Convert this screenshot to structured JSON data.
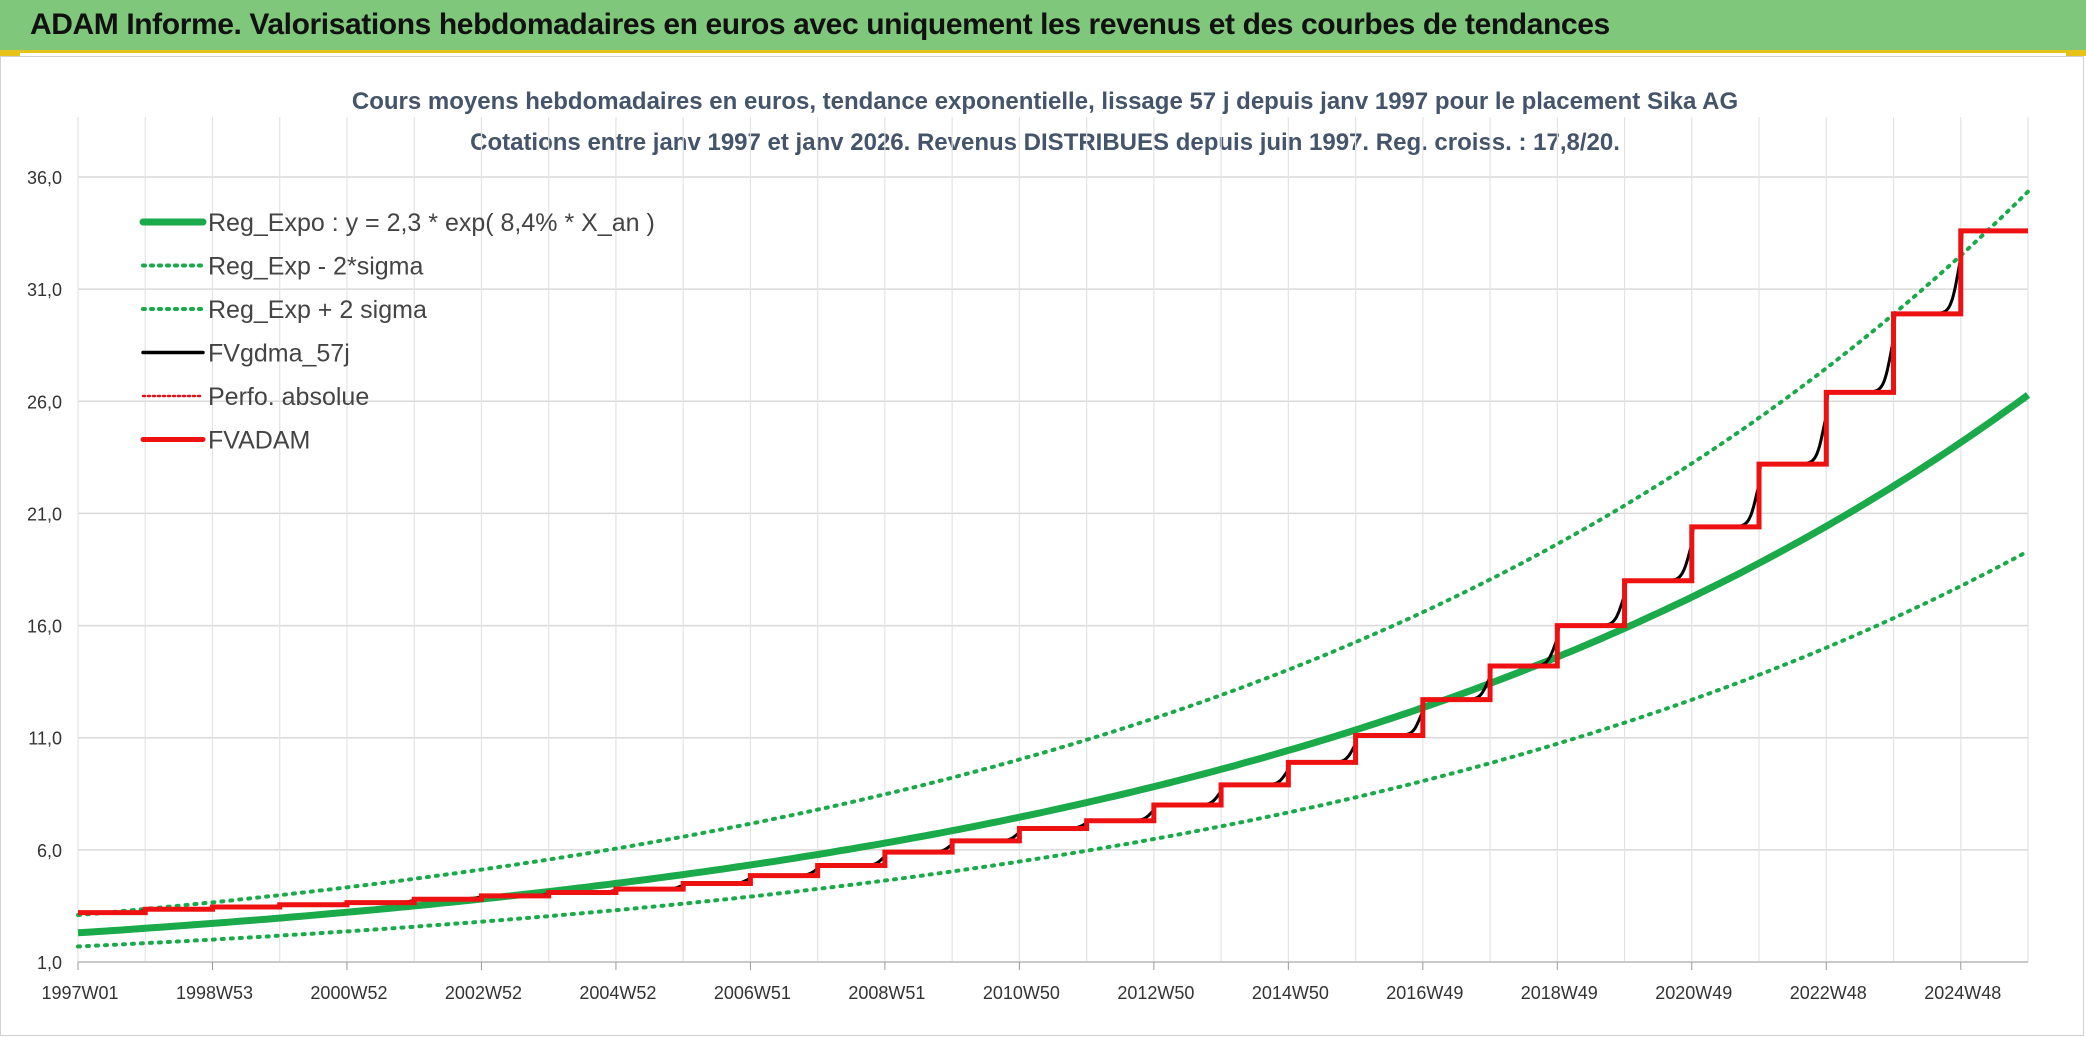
{
  "banner": {
    "title": "ADAM Informe. Valorisations hebdomadaires en euros avec uniquement les revenus et des courbes de tendances"
  },
  "chart_data": {
    "type": "line",
    "title": "Cours moyens hebdomadaires en euros, tendance exponentielle, lissage 57 j depuis janv 1997 pour le placement Sika AG",
    "subtitle": "Cotations entre janv 1997 et janv 2026. Revenus DISTRIBUES depuis juin 1997. Reg. croiss. : 17,8/20.",
    "x_start_year": 1997.0,
    "x_end_year": 2026.0,
    "x_tick_labels": [
      "1997W01",
      "1998W53",
      "2000W52",
      "2002W52",
      "2004W52",
      "2006W51",
      "2008W51",
      "2010W50",
      "2012W50",
      "2014W50",
      "2016W49",
      "2018W49",
      "2020W49",
      "2022W48",
      "2024W48"
    ],
    "y_ticks": [
      "1,0",
      "6,0",
      "11,0",
      "16,0",
      "21,0",
      "26,0",
      "31,0",
      "36,0"
    ],
    "ylim": [
      1,
      36
    ],
    "grid": true,
    "legend_position": "top-left",
    "reg_expo": {
      "a": 2.3,
      "rate": 0.084
    },
    "sigma_factors": {
      "lower": 0.735,
      "upper": 1.345
    },
    "fvadam_steps": [
      {
        "year": 1997.0,
        "value": 3.2
      },
      {
        "year": 1998.0,
        "value": 3.35
      },
      {
        "year": 1999.0,
        "value": 3.45
      },
      {
        "year": 2000.0,
        "value": 3.55
      },
      {
        "year": 2001.0,
        "value": 3.65
      },
      {
        "year": 2002.0,
        "value": 3.8
      },
      {
        "year": 2003.0,
        "value": 3.95
      },
      {
        "year": 2004.0,
        "value": 4.1
      },
      {
        "year": 2005.0,
        "value": 4.25
      },
      {
        "year": 2006.0,
        "value": 4.5
      },
      {
        "year": 2007.0,
        "value": 4.85
      },
      {
        "year": 2008.0,
        "value": 5.3
      },
      {
        "year": 2009.0,
        "value": 5.9
      },
      {
        "year": 2010.0,
        "value": 6.4
      },
      {
        "year": 2011.0,
        "value": 6.95
      },
      {
        "year": 2012.0,
        "value": 7.3
      },
      {
        "year": 2013.0,
        "value": 8.0
      },
      {
        "year": 2014.0,
        "value": 8.9
      },
      {
        "year": 2015.0,
        "value": 9.9
      },
      {
        "year": 2016.0,
        "value": 11.1
      },
      {
        "year": 2017.0,
        "value": 12.7
      },
      {
        "year": 2018.0,
        "value": 14.2
      },
      {
        "year": 2019.0,
        "value": 16.0
      },
      {
        "year": 2020.0,
        "value": 18.0
      },
      {
        "year": 2021.0,
        "value": 20.4
      },
      {
        "year": 2022.0,
        "value": 23.2
      },
      {
        "year": 2023.0,
        "value": 26.4
      },
      {
        "year": 2024.0,
        "value": 29.9
      },
      {
        "year": 2025.0,
        "value": 33.6
      }
    ],
    "series": [
      {
        "name": "Reg_Expo : y = 2,3 * exp( 8,4% *  X_an )",
        "color": "#1aaa4a",
        "style": "solid-thick"
      },
      {
        "name": "Reg_Exp - 2*sigma",
        "color": "#1aaa4a",
        "style": "dotted"
      },
      {
        "name": "Reg_Exp + 2 sigma",
        "color": "#1aaa4a",
        "style": "dotted"
      },
      {
        "name": "FVgdma_57j",
        "color": "#000000",
        "style": "solid"
      },
      {
        "name": "Perfo. absolue",
        "color": "#e0141e",
        "style": "dotted-thin"
      },
      {
        "name": "FVADAM",
        "color": "#ee1111",
        "style": "solid-thick"
      }
    ]
  }
}
